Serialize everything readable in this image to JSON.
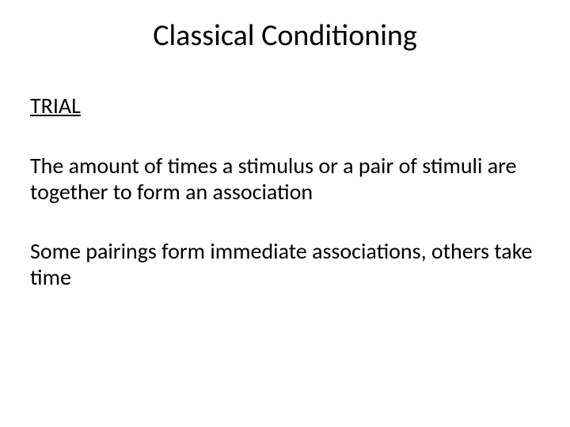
{
  "slide": {
    "title": "Classical Conditioning",
    "subheading": "TRIAL",
    "paragraph1": "The amount of times a stimulus or a pair of stimuli are together to form an association",
    "paragraph2": "Some pairings form immediate associations, others take time"
  },
  "style": {
    "background_color": "#ffffff",
    "text_color": "#000000",
    "title_fontsize": 38,
    "body_fontsize": 28,
    "font_family": "Calibri"
  }
}
